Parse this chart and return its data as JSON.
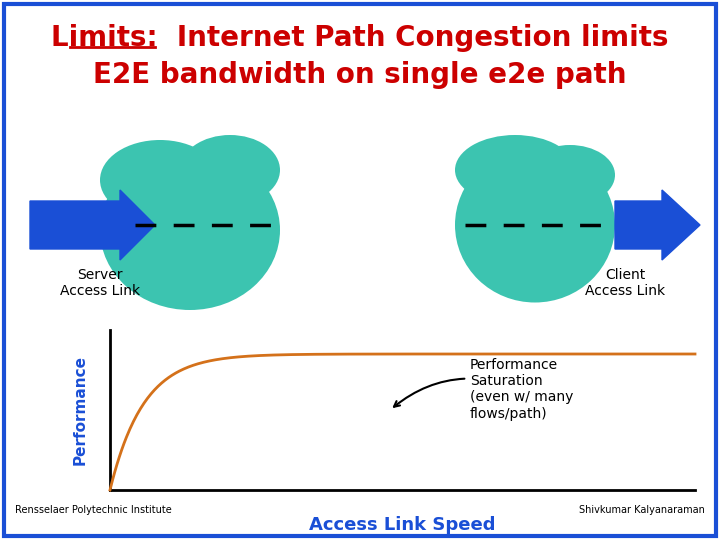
{
  "bg_color": "#ffffff",
  "border_color": "#1a4fd6",
  "title_line1": "Limits:  Internet Path Congestion limits",
  "title_line2": "E2E bandwidth on single e2e path",
  "title_color": "#cc0000",
  "title_fontsize": 20,
  "server_label": "Server\nAccess Link",
  "client_label": "Client\nAccess Link",
  "label_color": "#000000",
  "label_fontsize": 10,
  "cloud_color": "#3cc4b0",
  "arrow_color": "#1a4fd6",
  "saturation_label": "Performance\nSaturation\n(even w/ many\nflows/path)",
  "saturation_color": "#000000",
  "saturation_fontsize": 10,
  "perf_label": "Performance",
  "perf_color": "#1a4fd6",
  "perf_fontsize": 11,
  "xlabel": "Access Link Speed",
  "xlabel_color": "#1a4fd6",
  "xlabel_fontsize": 13,
  "curve_color": "#d4711a",
  "curve_linewidth": 2.0,
  "footer_left": "Rensselaer Polytechnic Institute",
  "footer_right": "Shivkumar Kalyanaraman",
  "footer_color": "#000000",
  "footer_fontsize": 7
}
